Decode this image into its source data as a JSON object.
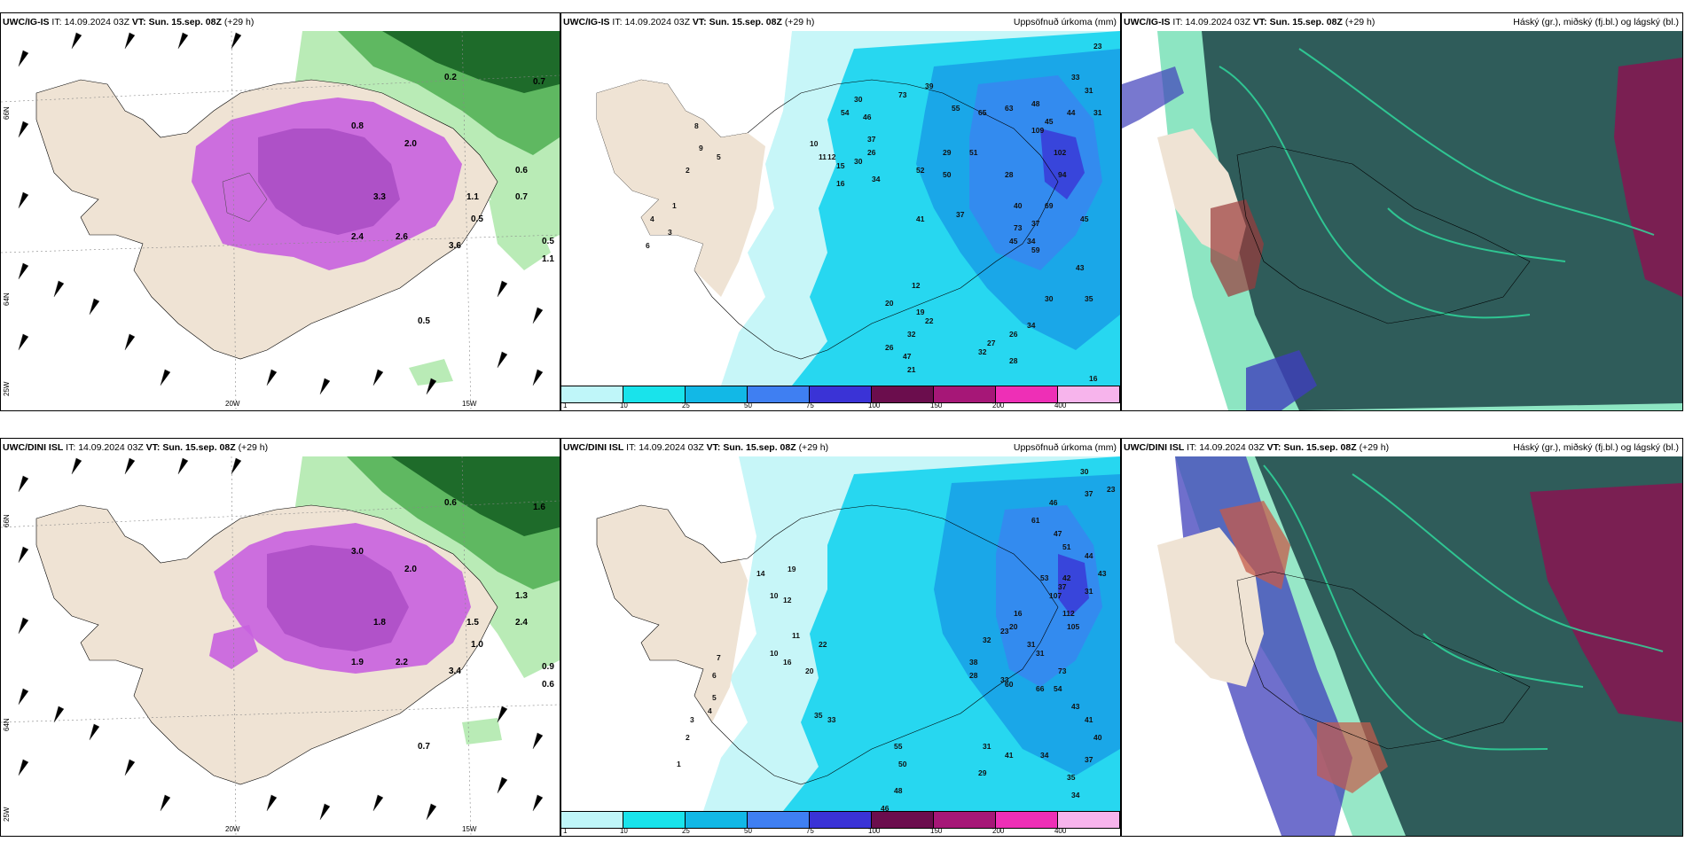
{
  "rows": [
    {
      "model": "UWC/IG-IS",
      "run_label": "IT:",
      "run_time": "14.09.2024 03Z",
      "valid_label": "VT:",
      "valid_time": "Sun. 15.sep. 08Z",
      "lead": "(+29 h)",
      "precip_title": "Uppsöfnuð úrkoma (mm)",
      "cloud_title": "Háský (gr.), miðský (fj.bl.) og lágský (bl.)",
      "wind_labels": [
        "0.5",
        "0.7",
        "0.6",
        "0.7",
        "0.5",
        "1.1",
        "0.2",
        "0.8",
        "2.0",
        "3.3",
        "2.4",
        "2.6",
        "3.6",
        "1.1",
        "0.5"
      ],
      "precip_labels": [
        "23",
        "33",
        "31",
        "31",
        "44",
        "45",
        "48",
        "63",
        "65",
        "55",
        "39",
        "73",
        "30",
        "46",
        "54",
        "37",
        "26",
        "30",
        "12",
        "10",
        "11",
        "15",
        "16",
        "34",
        "29",
        "52",
        "50",
        "51",
        "28",
        "109",
        "102",
        "94",
        "41",
        "37",
        "45",
        "73",
        "34",
        "40",
        "59",
        "69",
        "37",
        "45",
        "43",
        "35",
        "30",
        "34",
        "26",
        "27",
        "32",
        "28",
        "16",
        "17",
        "15",
        "45",
        "18",
        "21",
        "26",
        "47",
        "32",
        "22",
        "19",
        "20",
        "12",
        "8",
        "9",
        "5",
        "2",
        "1",
        "3",
        "6",
        "4"
      ]
    },
    {
      "model": "UWC/DINI ISL",
      "run_label": "IT:",
      "run_time": "14.09.2024 03Z",
      "valid_label": "VT:",
      "valid_time": "Sun. 15.sep. 08Z",
      "lead": "(+29 h)",
      "precip_title": "Uppsöfnuð úrkoma (mm)",
      "cloud_title": "Háský (gr.), miðský (fj.bl.) og lágský (bl.)",
      "wind_labels": [
        "0.7",
        "1.6",
        "1.3",
        "2.4",
        "0.9",
        "0.6",
        "0.6",
        "3.0",
        "2.0",
        "1.8",
        "1.9",
        "2.2",
        "3.4",
        "1.5",
        "1.0"
      ],
      "precip_labels": [
        "30",
        "23",
        "37",
        "46",
        "61",
        "47",
        "51",
        "44",
        "43",
        "31",
        "42",
        "53",
        "37",
        "16",
        "20",
        "23",
        "32",
        "38",
        "28",
        "33",
        "31",
        "31",
        "60",
        "66",
        "107",
        "112",
        "105",
        "73",
        "54",
        "43",
        "41",
        "40",
        "37",
        "34",
        "35",
        "34",
        "28",
        "41",
        "31",
        "29",
        "46",
        "48",
        "50",
        "55",
        "33",
        "35",
        "20",
        "16",
        "10",
        "22",
        "11",
        "12",
        "14",
        "19",
        "10",
        "7",
        "6",
        "5",
        "4",
        "3",
        "2",
        "1"
      ]
    }
  ],
  "axes": {
    "lat_top": "66N",
    "lat_mid": "64N",
    "lon_left": "25W",
    "lon_20": "20W",
    "lon_15": "15W"
  },
  "precip_legend": {
    "labels": [
      "1",
      "10",
      "25",
      "50",
      "75",
      "100",
      "150",
      "200",
      "400"
    ],
    "colors": [
      "#bff6f9",
      "#19e3eb",
      "#12b8e6",
      "#3f7ff2",
      "#3a33d6",
      "#6b0d4d",
      "#a61777",
      "#ee2fb6",
      "#f7b4ec"
    ]
  },
  "colors": {
    "land": "#efe3d4",
    "sea": "#ffffff",
    "precip_light": "#c7f6f8",
    "precip_mid": "#27d7f0",
    "precip_heavy": "#1aa7e8",
    "green_dark": "#1e6b2a",
    "green_light": "#b9ebb6",
    "magenta": "#c861df",
    "cloud_high": "#2f5c5a",
    "cloud_mid": "#2fcf90",
    "cloud_low": "#3f3fbb",
    "cloud_red": "#9b3b3b"
  }
}
